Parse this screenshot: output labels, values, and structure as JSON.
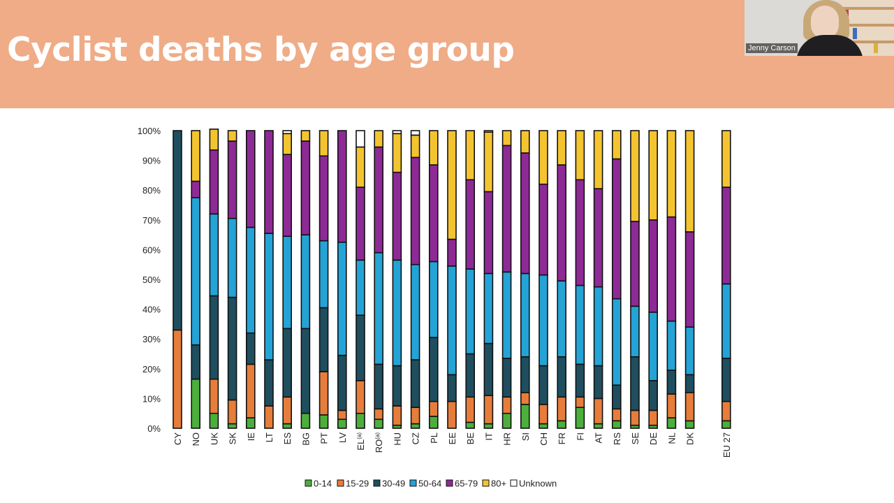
{
  "header": {
    "title": "Cyclist deaths by age group"
  },
  "video": {
    "participant_name": "Jenny Carson"
  },
  "chart_data": {
    "type": "bar",
    "stacked": true,
    "normalized": true,
    "yticks": [
      "0%",
      "10%",
      "20%",
      "30%",
      "40%",
      "50%",
      "60%",
      "70%",
      "80%",
      "90%",
      "100%"
    ],
    "ylim": [
      0,
      100
    ],
    "legend_position": "bottom",
    "categories": [
      "CY",
      "NO",
      "UK",
      "SK",
      "IE",
      "LT",
      "ES",
      "BG",
      "PT",
      "LV",
      "EL",
      "RO",
      "HU",
      "CZ",
      "PL",
      "EE",
      "BE",
      "IT",
      "HR",
      "SI",
      "CH",
      "FR",
      "FI",
      "AT",
      "RS",
      "SE",
      "DE",
      "NL",
      "DK",
      "EU 27"
    ],
    "category_superscripts": [
      "",
      "",
      "",
      "",
      "",
      "",
      "",
      "",
      "",
      "",
      "(a)",
      "(a)",
      "",
      "",
      "",
      "",
      "",
      "",
      "",
      "",
      "",
      "",
      "",
      "",
      "",
      "",
      "",
      "",
      "",
      ""
    ],
    "gap_before": [
      "EU 27"
    ],
    "series": [
      {
        "name": "0-14",
        "color": "#4caf3c",
        "values": [
          0,
          16.5,
          5,
          1.5,
          3.5,
          0,
          1.5,
          5,
          4.5,
          3,
          5,
          3,
          1,
          1.5,
          4,
          0,
          2,
          1.5,
          5,
          8,
          1.5,
          2.5,
          7,
          1.5,
          2.5,
          1,
          1,
          3.5,
          2.5,
          2.5
        ]
      },
      {
        "name": "15-29",
        "color": "#e77d3a",
        "values": [
          33,
          0,
          11.5,
          8,
          18,
          7.5,
          9,
          0,
          14.5,
          3,
          11,
          3.5,
          6.5,
          5.5,
          5,
          9,
          8.5,
          9.5,
          5.5,
          4,
          6.5,
          8,
          3.5,
          8.5,
          4,
          5,
          5,
          8,
          9.5,
          6.5
        ]
      },
      {
        "name": "30-49",
        "color": "#1f4e5f",
        "values": [
          67,
          11.5,
          28,
          34.5,
          10.5,
          15.5,
          23,
          28.5,
          21.5,
          18.5,
          22,
          15,
          13.5,
          16,
          21.5,
          9,
          14.5,
          17.5,
          13,
          12,
          13,
          13.5,
          11,
          11,
          8,
          18,
          10,
          8,
          6,
          14.5
        ]
      },
      {
        "name": "50-64",
        "color": "#24a3d6",
        "values": [
          0,
          49.5,
          27.5,
          26.5,
          35.5,
          42.5,
          31,
          31.5,
          22.5,
          38,
          18.5,
          37.5,
          35.5,
          32,
          25.5,
          36.5,
          28.5,
          23.5,
          29,
          28,
          30.5,
          25.5,
          26.5,
          26.5,
          29,
          17,
          23,
          16.5,
          16,
          25
        ]
      },
      {
        "name": "65-79",
        "color": "#8e2a96",
        "values": [
          0,
          5.5,
          21.5,
          26,
          32.5,
          34.5,
          27.5,
          31.5,
          28.5,
          37.5,
          24.5,
          35.5,
          29.5,
          36,
          32.5,
          9,
          30,
          27.5,
          42.5,
          40.5,
          30.5,
          39,
          35.5,
          33,
          47,
          28.5,
          31,
          35,
          32,
          32.5
        ]
      },
      {
        "name": "80+",
        "color": "#f4c430",
        "values": [
          0,
          17,
          7,
          3.5,
          0,
          0,
          7,
          3.5,
          8.5,
          0,
          13.5,
          5.5,
          13,
          7.5,
          11.5,
          36.5,
          16.5,
          20,
          5,
          7.5,
          18,
          11.5,
          16.5,
          19.5,
          9.5,
          30.5,
          30,
          29,
          34,
          19
        ]
      },
      {
        "name": "Unknown",
        "color": "#ffffff",
        "values": [
          0,
          0,
          0,
          0,
          0,
          0,
          1,
          0,
          0,
          0,
          5.5,
          0,
          1,
          1.5,
          0,
          0,
          0,
          0.5,
          0,
          0,
          0,
          0,
          0,
          0,
          0,
          0,
          0,
          0,
          0,
          0
        ]
      }
    ]
  }
}
